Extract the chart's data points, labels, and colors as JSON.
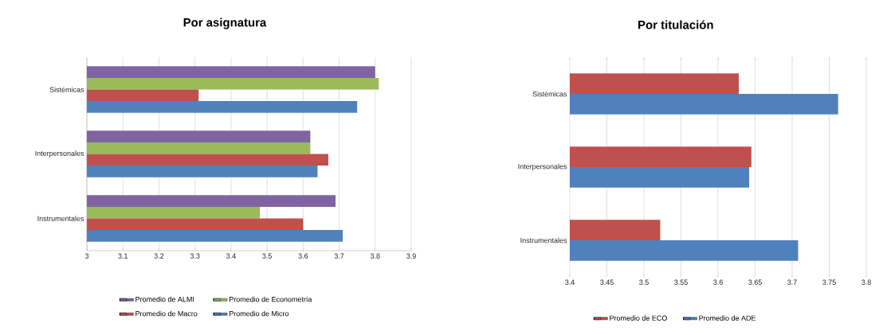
{
  "chart_data": [
    {
      "type": "bar",
      "orientation": "horizontal",
      "title": "Por asignatura",
      "categories": [
        "Sistémicas",
        "Interpersonales",
        "Instrumentales"
      ],
      "series": [
        {
          "name": "Promedio de ALMI",
          "color": "#8064a2",
          "values": [
            3.8,
            3.62,
            3.69
          ]
        },
        {
          "name": "Promedio de Econometría",
          "color": "#9bbb59",
          "values": [
            3.81,
            3.62,
            3.48
          ]
        },
        {
          "name": "Promedio de Macro",
          "color": "#c0504d",
          "values": [
            3.31,
            3.67,
            3.6
          ]
        },
        {
          "name": "Promedio de Micro",
          "color": "#4f81bd",
          "values": [
            3.75,
            3.64,
            3.71
          ]
        }
      ],
      "xlim": [
        3,
        3.9
      ],
      "xticks": [
        3,
        3.1,
        3.2,
        3.3,
        3.4,
        3.5,
        3.6,
        3.7,
        3.8,
        3.9
      ],
      "grid": "x",
      "legend": "bottom"
    },
    {
      "type": "bar",
      "orientation": "horizontal",
      "title": "Por titulación",
      "categories": [
        "Sistémicas",
        "Interpersonales",
        "Instrumentales"
      ],
      "series": [
        {
          "name": "Promedio de ECO",
          "color": "#c0504d",
          "values": [
            3.628,
            3.645,
            3.522
          ]
        },
        {
          "name": "Promedio de ADE",
          "color": "#4f81bd",
          "values": [
            3.762,
            3.642,
            3.708
          ]
        }
      ],
      "xlim": [
        3.4,
        3.8
      ],
      "xticks": [
        3.4,
        3.45,
        3.5,
        3.55,
        3.6,
        3.65,
        3.7,
        3.75,
        3.8
      ],
      "grid": "x",
      "legend": "bottom"
    }
  ]
}
